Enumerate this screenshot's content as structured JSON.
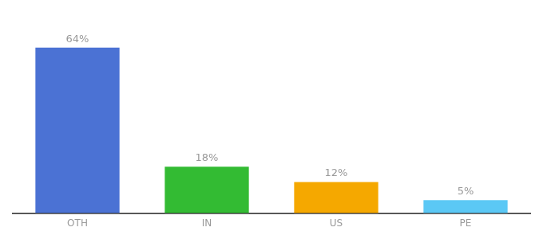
{
  "chart_data": {
    "type": "bar",
    "categories": [
      "OTH",
      "IN",
      "US",
      "PE"
    ],
    "values": [
      64,
      18,
      12,
      5
    ],
    "value_labels": [
      "64%",
      "18%",
      "12%",
      "5%"
    ],
    "colors": [
      "#4b72d4",
      "#33bb33",
      "#f5a800",
      "#5bc8f5"
    ],
    "ylim": [
      0,
      75
    ],
    "grid": false,
    "data_labels": true,
    "tick_labels": "x"
  }
}
